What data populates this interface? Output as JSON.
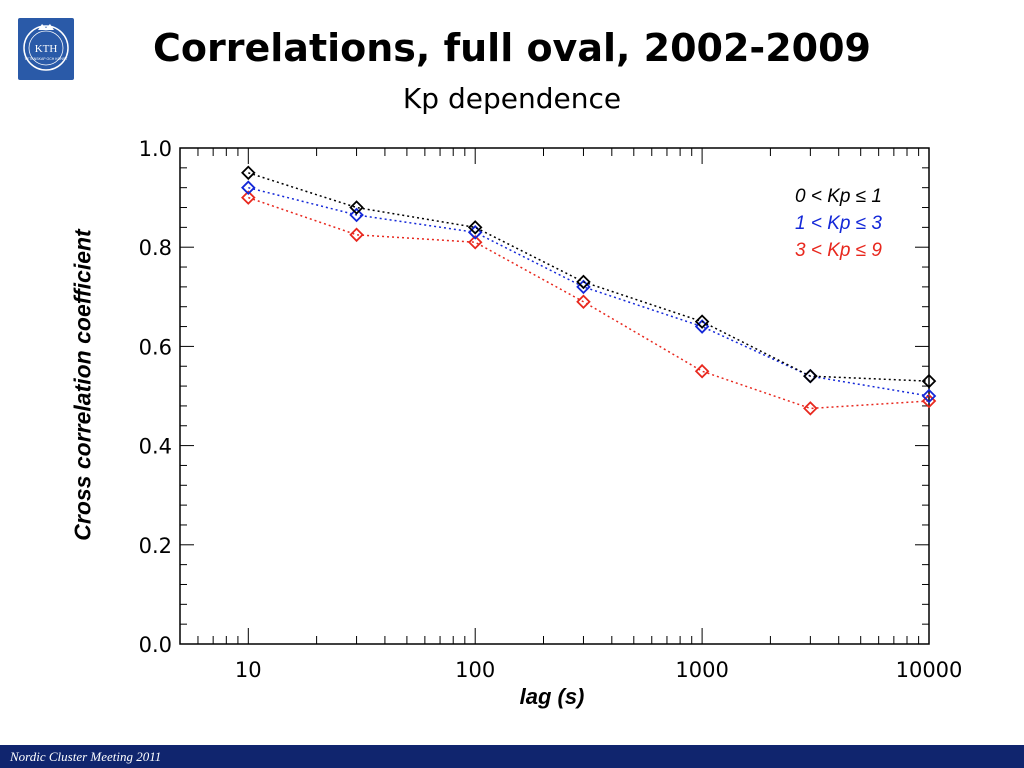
{
  "slide": {
    "title": "Correlations, full oval, 2002-2009",
    "subtitle": "Kp dependence",
    "footer": "Nordic Cluster Meeting 2011",
    "logo_text": "KTH",
    "logo_subtext": "VETENSKAP OCH KONST",
    "logo_color": "#2a5aa8",
    "footer_color": "#10256e"
  },
  "chart_data": {
    "type": "line",
    "title": "",
    "xlabel": "lag (s)",
    "ylabel": "Cross correlation coefficient",
    "xscale": "log",
    "xlim": [
      5,
      10000
    ],
    "ylim": [
      0,
      1
    ],
    "x_ticks": [
      "10",
      "100",
      "1000",
      "10000"
    ],
    "y_ticks": [
      "0.0",
      "0.2",
      "0.4",
      "0.6",
      "0.8",
      "1.0"
    ],
    "x": [
      10,
      30,
      100,
      300,
      1000,
      3000,
      10000
    ],
    "marker": "diamond",
    "line_style": "dotted",
    "grid": false,
    "legend_position": "top-right",
    "series": [
      {
        "name": "0 < Kp ≤ 1",
        "color": "#000000",
        "values": [
          0.95,
          0.88,
          0.84,
          0.73,
          0.65,
          0.54,
          0.53
        ]
      },
      {
        "name": "1 < Kp ≤ 3",
        "color": "#1428d8",
        "values": [
          0.92,
          0.865,
          0.83,
          0.72,
          0.64,
          0.54,
          0.5
        ]
      },
      {
        "name": "3 < Kp ≤ 9",
        "color": "#e8281e",
        "values": [
          0.9,
          0.825,
          0.81,
          0.69,
          0.55,
          0.475,
          0.49
        ]
      }
    ]
  }
}
